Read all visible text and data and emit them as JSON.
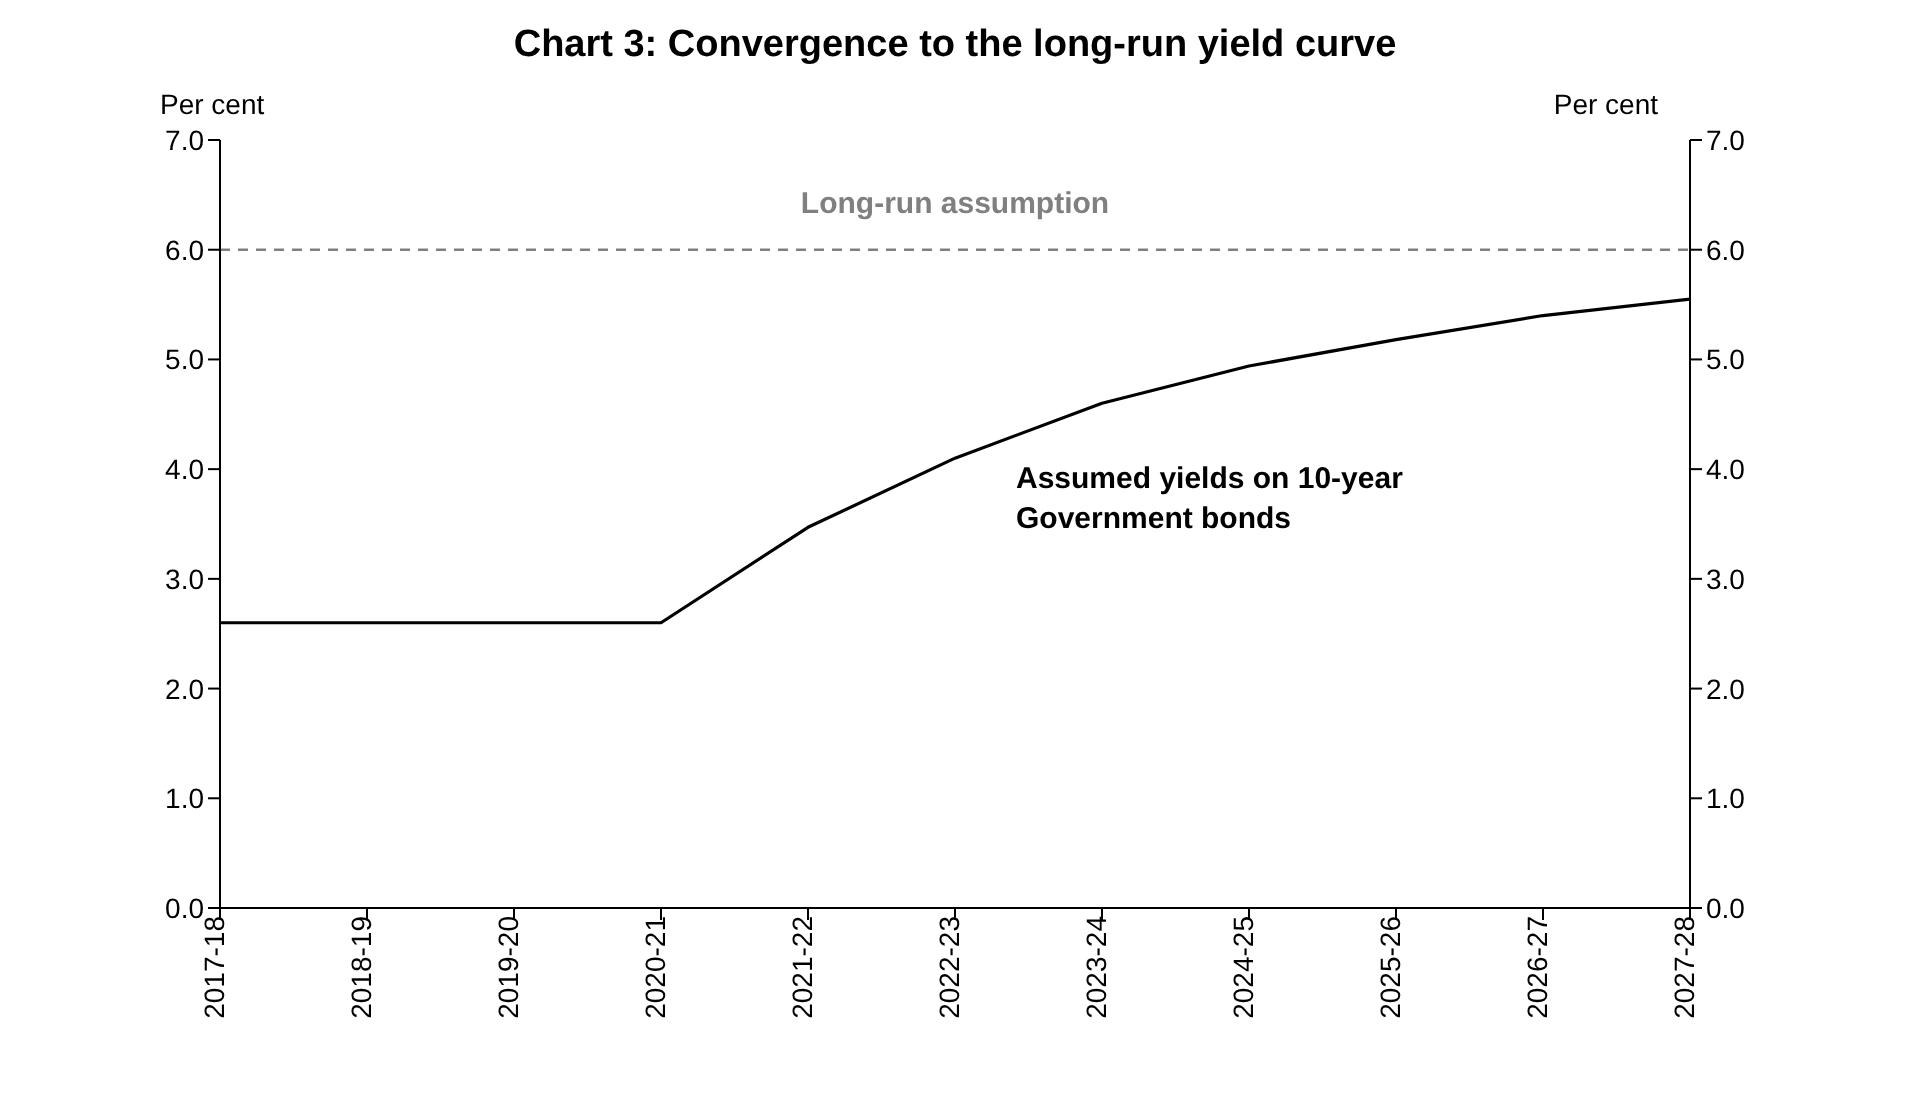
{
  "chart_data": {
    "type": "line",
    "title": "Chart 3: Convergence to the long-run yield curve",
    "ylabel": "Per cent",
    "y2label": "Per cent",
    "categories": [
      "2017-18",
      "2018-19",
      "2019-20",
      "2020-21",
      "2021-22",
      "2022-23",
      "2023-24",
      "2024-25",
      "2025-26",
      "2026-27",
      "2027-28"
    ],
    "series": [
      {
        "name": "Assumed yields on 10-year Government bonds",
        "color": "#000000",
        "values": [
          2.6,
          2.6,
          2.6,
          2.6,
          3.47,
          4.1,
          4.6,
          4.94,
          5.18,
          5.4,
          5.55
        ]
      }
    ],
    "ylim": [
      0,
      7
    ],
    "yticks": [
      {
        "value": 0,
        "label": "0.0"
      },
      {
        "value": 1,
        "label": "1.0"
      },
      {
        "value": 2,
        "label": "2.0"
      },
      {
        "value": 3,
        "label": "3.0"
      },
      {
        "value": 4,
        "label": "4.0"
      },
      {
        "value": 5,
        "label": "5.0"
      },
      {
        "value": 6,
        "label": "6.0"
      },
      {
        "value": 7,
        "label": "7.0"
      }
    ],
    "y2lim": [
      0,
      7
    ],
    "y2ticks": [
      {
        "value": 0,
        "label": "0.0"
      },
      {
        "value": 1,
        "label": "1.0"
      },
      {
        "value": 2,
        "label": "2.0"
      },
      {
        "value": 3,
        "label": "3.0"
      },
      {
        "value": 4,
        "label": "4.0"
      },
      {
        "value": 5,
        "label": "5.0"
      },
      {
        "value": 6,
        "label": "6.0"
      },
      {
        "value": 7,
        "label": "7.0"
      }
    ],
    "ref_lines": [
      {
        "axis": "y",
        "value": 6,
        "label": "Long-run assumption",
        "color": "#808080",
        "line_style": "dashed"
      }
    ],
    "marker": "none",
    "line_style": "solid"
  }
}
